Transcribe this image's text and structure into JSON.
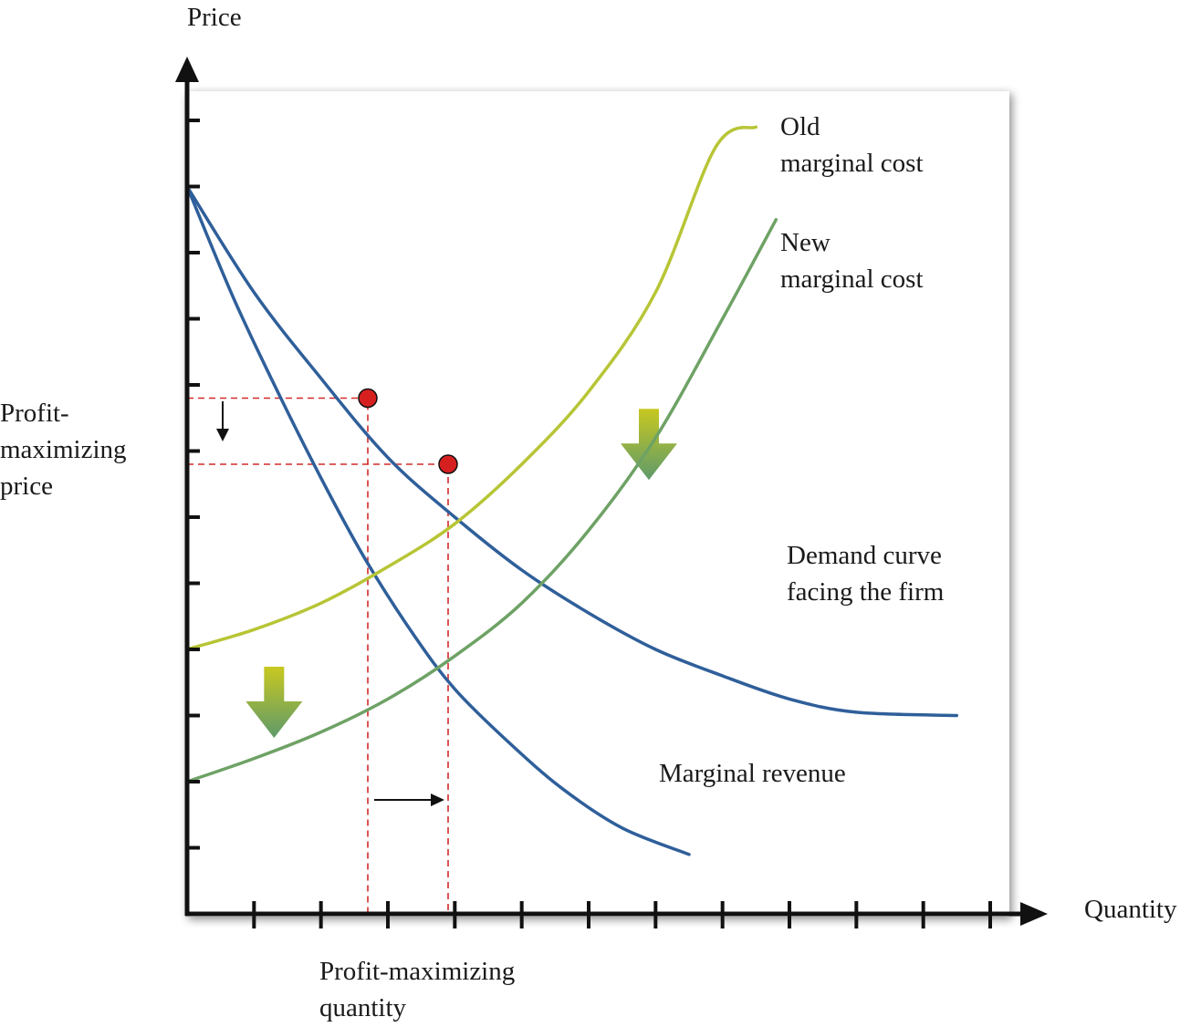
{
  "chart_data": {
    "type": "line",
    "title": "",
    "xlabel": "Quantity",
    "ylabel": "Price",
    "xlim": [
      0,
      12
    ],
    "ylim": [
      0,
      12
    ],
    "grid": false,
    "series": [
      {
        "name": "Demand curve facing the firm",
        "color": "#2f5f9a",
        "points": [
          [
            0,
            11
          ],
          [
            1,
            9.4
          ],
          [
            2,
            8.1
          ],
          [
            3,
            6.9
          ],
          [
            4,
            6.0
          ],
          [
            5,
            5.2
          ],
          [
            6,
            4.55
          ],
          [
            7,
            4.0
          ],
          [
            8,
            3.6
          ],
          [
            9,
            3.25
          ],
          [
            10,
            3.05
          ],
          [
            11.5,
            3.0
          ]
        ]
      },
      {
        "name": "Marginal revenue",
        "color": "#2f5f9a",
        "points": [
          [
            0,
            11
          ],
          [
            0.7,
            9.3
          ],
          [
            1.4,
            7.8
          ],
          [
            2.1,
            6.4
          ],
          [
            2.7,
            5.3
          ],
          [
            3.4,
            4.2
          ],
          [
            4,
            3.4
          ],
          [
            4.8,
            2.6
          ],
          [
            5.6,
            1.9
          ],
          [
            6.5,
            1.3
          ],
          [
            7.5,
            0.9
          ]
        ]
      },
      {
        "name": "Old marginal cost",
        "color": "#b7c535",
        "points": [
          [
            0,
            4
          ],
          [
            1,
            4.3
          ],
          [
            2,
            4.7
          ],
          [
            3,
            5.25
          ],
          [
            4,
            5.9
          ],
          [
            5,
            6.8
          ],
          [
            6,
            7.9
          ],
          [
            7,
            9.4
          ],
          [
            7.9,
            11.6
          ],
          [
            8.5,
            11.9
          ]
        ]
      },
      {
        "name": "New marginal cost",
        "color": "#6ea265",
        "points": [
          [
            0,
            2
          ],
          [
            1,
            2.35
          ],
          [
            2,
            2.75
          ],
          [
            3,
            3.25
          ],
          [
            4,
            3.9
          ],
          [
            5,
            4.7
          ],
          [
            6,
            5.8
          ],
          [
            7,
            7.2
          ],
          [
            8,
            9.0
          ],
          [
            8.8,
            10.5
          ]
        ]
      }
    ],
    "equilibria": [
      {
        "label": "old",
        "x": 2.7,
        "y": 7.8
      },
      {
        "label": "new",
        "x": 3.9,
        "y": 6.8
      }
    ],
    "shift_arrows": [
      {
        "name": "marginal-cost-shift-arrow-left",
        "x": 1.3,
        "y": 3.2
      },
      {
        "name": "marginal-cost-shift-arrow-right",
        "x": 6.9,
        "y": 7.1
      }
    ]
  },
  "labels": {
    "price_axis": "Price",
    "quantity_axis": "Quantity",
    "old_mc_line1": "Old",
    "old_mc_line2": "marginal cost",
    "new_mc_line1": "New",
    "new_mc_line2": "marginal cost",
    "demand_line1": "Demand curve",
    "demand_line2": "facing the firm",
    "mr": "Marginal revenue",
    "pmp_line1": "Profit-",
    "pmp_line2": "maximizing",
    "pmp_line3": "price",
    "pmq_line1": "Profit-maximizing",
    "pmq_line2": "quantity"
  },
  "colors": {
    "demand": "#2f5f9a",
    "old_mc": "#b7c535",
    "new_mc": "#6ea265",
    "guides": "#d42a2a",
    "point_fill": "#d62020",
    "axis": "#111111"
  }
}
